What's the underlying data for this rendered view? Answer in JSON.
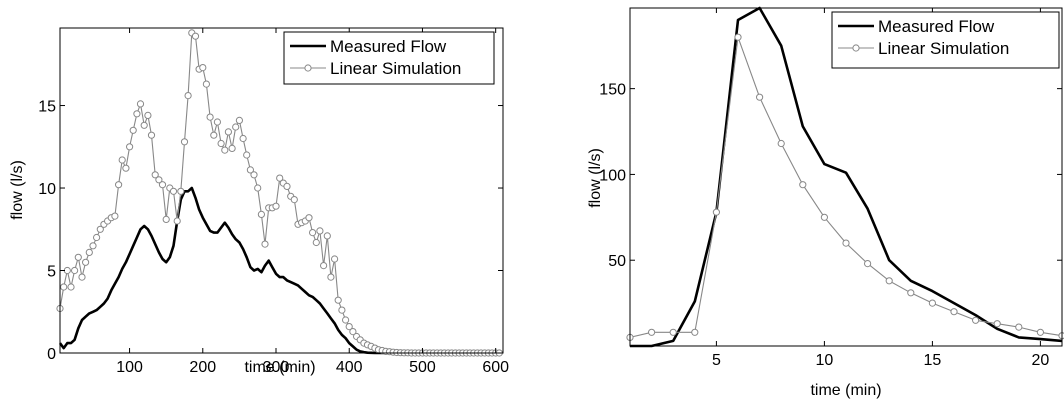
{
  "chart_data": [
    {
      "type": "line",
      "xlabel": "time (min)",
      "ylabel": "flow (l/s)",
      "xlim": [
        5,
        610
      ],
      "ylim": [
        0,
        19.7
      ],
      "xticks": [
        "100",
        "200",
        "300",
        "400",
        "500",
        "600"
      ],
      "yticks": [
        "0",
        "5",
        "10",
        "15"
      ],
      "legend_position": "top-right",
      "grid": false,
      "series": [
        {
          "name": "Measured Flow",
          "style": "solid-thick",
          "color": "#000000",
          "x": [
            5,
            10,
            15,
            20,
            25,
            30,
            35,
            40,
            45,
            50,
            55,
            60,
            65,
            70,
            75,
            80,
            85,
            90,
            95,
            100,
            105,
            110,
            115,
            120,
            125,
            130,
            135,
            140,
            145,
            150,
            155,
            160,
            165,
            170,
            175,
            180,
            185,
            190,
            195,
            200,
            205,
            210,
            215,
            220,
            225,
            230,
            235,
            240,
            245,
            250,
            255,
            260,
            265,
            270,
            275,
            280,
            285,
            290,
            295,
            300,
            305,
            310,
            315,
            320,
            325,
            330,
            335,
            340,
            345,
            350,
            355,
            360,
            365,
            370,
            375,
            380,
            385,
            390,
            395,
            400,
            405,
            410,
            415,
            420,
            425,
            430,
            435,
            440,
            445,
            450,
            455,
            460,
            465,
            470,
            475,
            480,
            485,
            490,
            495,
            500,
            505,
            510,
            515,
            520,
            525,
            530,
            535,
            540,
            545,
            550,
            555,
            560,
            565,
            570,
            575,
            580,
            585,
            590,
            595,
            600,
            605
          ],
          "values": [
            0.6,
            0.3,
            0.6,
            0.6,
            0.8,
            1.5,
            2.0,
            2.2,
            2.4,
            2.5,
            2.6,
            2.8,
            3.0,
            3.3,
            3.8,
            4.2,
            4.6,
            5.1,
            5.5,
            6.0,
            6.5,
            7.0,
            7.5,
            7.7,
            7.5,
            7.1,
            6.6,
            6.1,
            5.7,
            5.5,
            5.8,
            6.5,
            8.0,
            9.3,
            9.8,
            9.8,
            10.0,
            9.4,
            8.7,
            8.2,
            7.8,
            7.4,
            7.3,
            7.3,
            7.6,
            7.9,
            7.6,
            7.2,
            6.9,
            6.7,
            6.3,
            5.8,
            5.2,
            5.0,
            5.1,
            4.9,
            5.3,
            5.6,
            5.2,
            4.8,
            4.6,
            4.6,
            4.4,
            4.3,
            4.2,
            4.1,
            3.9,
            3.7,
            3.5,
            3.4,
            3.2,
            3.0,
            2.7,
            2.4,
            2.1,
            1.8,
            1.4,
            1.1,
            0.9,
            0.6,
            0.4,
            0.2,
            0.1,
            0.05,
            0.02,
            0.01,
            0.0,
            0.0,
            0.0,
            0.0,
            0.0,
            0.0,
            0.0,
            0.0,
            0.0,
            0.0,
            0.0,
            0.0,
            0.0,
            0.0,
            0.0,
            0.0,
            0.0,
            0.0,
            0.0,
            0.0,
            0.0,
            0.0,
            0.0,
            0.0,
            0.0,
            0.0,
            0.0,
            0.0,
            0.0,
            0.0,
            0.0,
            0.0,
            0.0,
            0.0,
            0.0
          ]
        },
        {
          "name": "Linear Simulation",
          "style": "thin-circle-markers",
          "color": "#888888",
          "x": [
            5,
            10,
            15,
            20,
            25,
            30,
            35,
            40,
            45,
            50,
            55,
            60,
            65,
            70,
            75,
            80,
            85,
            90,
            95,
            100,
            105,
            110,
            115,
            120,
            125,
            130,
            135,
            140,
            145,
            150,
            155,
            160,
            165,
            170,
            175,
            180,
            185,
            190,
            195,
            200,
            205,
            210,
            215,
            220,
            225,
            230,
            235,
            240,
            245,
            250,
            255,
            260,
            265,
            270,
            275,
            280,
            285,
            290,
            295,
            300,
            305,
            310,
            315,
            320,
            325,
            330,
            335,
            340,
            345,
            350,
            355,
            360,
            365,
            370,
            375,
            380,
            385,
            390,
            395,
            400,
            405,
            410,
            415,
            420,
            425,
            430,
            435,
            440,
            445,
            450,
            455,
            460,
            465,
            470,
            475,
            480,
            485,
            490,
            495,
            500,
            505,
            510,
            515,
            520,
            525,
            530,
            535,
            540,
            545,
            550,
            555,
            560,
            565,
            570,
            575,
            580,
            585,
            590,
            595,
            600,
            605
          ],
          "values": [
            2.7,
            4.0,
            5.0,
            4.0,
            5.0,
            5.8,
            4.6,
            5.5,
            6.1,
            6.5,
            7.0,
            7.5,
            7.8,
            8.0,
            8.2,
            8.3,
            10.2,
            11.7,
            11.2,
            12.5,
            13.5,
            14.5,
            15.1,
            13.8,
            14.4,
            13.2,
            10.8,
            10.5,
            10.2,
            8.1,
            10.0,
            9.8,
            8.0,
            9.8,
            12.8,
            15.6,
            19.4,
            19.2,
            17.2,
            17.3,
            16.3,
            14.3,
            13.2,
            14.0,
            12.7,
            12.3,
            13.4,
            12.4,
            13.7,
            14.1,
            13.0,
            12.0,
            11.1,
            10.8,
            10.0,
            8.4,
            6.6,
            8.8,
            8.8,
            8.9,
            10.6,
            10.3,
            10.1,
            9.5,
            9.3,
            7.8,
            7.9,
            8.0,
            8.2,
            7.3,
            6.7,
            7.4,
            5.3,
            7.1,
            4.6,
            5.7,
            3.2,
            2.6,
            2.0,
            1.6,
            1.3,
            1.0,
            0.8,
            0.6,
            0.5,
            0.4,
            0.3,
            0.2,
            0.15,
            0.1,
            0.08,
            0.05,
            0.03,
            0.02,
            0.01,
            0.01,
            0.0,
            0.0,
            0.0,
            0.0,
            0.0,
            0.0,
            0.0,
            0.0,
            0.0,
            0.0,
            0.0,
            0.0,
            0.0,
            0.0,
            0.0,
            0.0,
            0.0,
            0.0,
            0.0,
            0.0,
            0.0,
            0.0,
            0.0,
            0.0,
            0.0
          ]
        }
      ]
    },
    {
      "type": "line",
      "xlabel": "time (min)",
      "ylabel": "flow (l/s)",
      "xlim": [
        1,
        21
      ],
      "ylim": [
        0,
        197
      ],
      "xticks": [
        "5",
        "10",
        "15",
        "20"
      ],
      "yticks": [
        "50",
        "100",
        "150"
      ],
      "legend_position": "top-right",
      "grid": false,
      "series": [
        {
          "name": "Measured Flow",
          "style": "solid-thick",
          "color": "#000000",
          "x": [
            1,
            2,
            3,
            4,
            5,
            6,
            7,
            8,
            9,
            10,
            11,
            12,
            13,
            14,
            15,
            16,
            17,
            18,
            19,
            20,
            21
          ],
          "values": [
            0,
            0,
            3,
            26,
            78,
            190,
            197,
            175,
            128,
            106,
            101,
            80,
            50,
            38,
            32,
            25,
            18,
            10,
            5,
            4,
            3
          ]
        },
        {
          "name": "Linear Simulation",
          "style": "thin-circle-markers",
          "color": "#888888",
          "x": [
            1,
            2,
            3,
            4,
            5,
            6,
            7,
            8,
            9,
            10,
            11,
            12,
            13,
            14,
            15,
            16,
            17,
            18,
            19,
            20,
            21
          ],
          "values": [
            5,
            8,
            8,
            8,
            78,
            180,
            145,
            118,
            94,
            75,
            60,
            48,
            38,
            31,
            25,
            20,
            15,
            13,
            11,
            8,
            6
          ]
        }
      ]
    }
  ]
}
